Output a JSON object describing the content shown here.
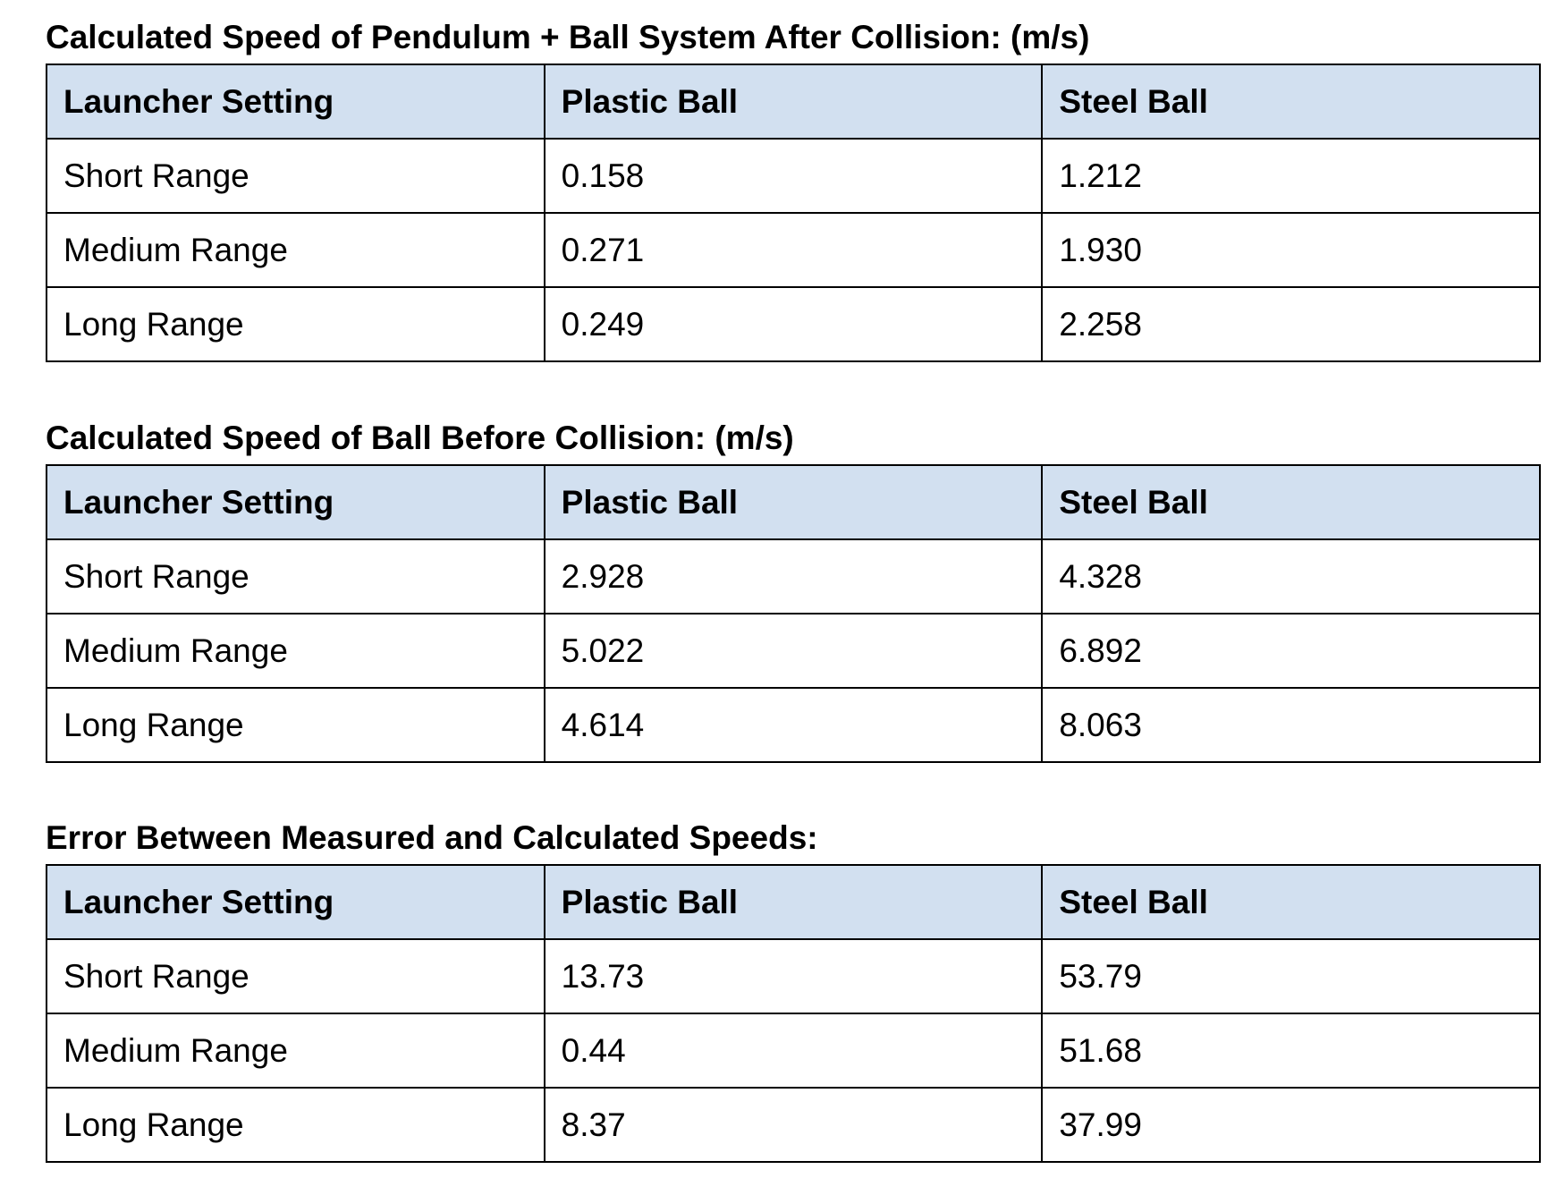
{
  "sections": [
    {
      "title": "Calculated Speed of Pendulum + Ball System After Collision: (m/s)",
      "header": [
        "Launcher Setting",
        "Plastic Ball",
        "Steel Ball"
      ],
      "rows": [
        [
          "Short Range",
          "0.158",
          "1.212"
        ],
        [
          "Medium Range",
          "0.271",
          "1.930"
        ],
        [
          "Long Range",
          "0.249",
          "2.258"
        ]
      ]
    },
    {
      "title": "Calculated Speed of Ball Before Collision: (m/s)",
      "header": [
        "Launcher Setting",
        "Plastic Ball",
        "Steel Ball"
      ],
      "rows": [
        [
          "Short Range",
          "2.928",
          "4.328"
        ],
        [
          "Medium Range",
          "5.022",
          "6.892"
        ],
        [
          "Long Range",
          "4.614",
          "8.063"
        ]
      ]
    },
    {
      "title": "Error Between Measured and Calculated Speeds:",
      "header": [
        "Launcher Setting",
        "Plastic Ball",
        "Steel Ball"
      ],
      "rows": [
        [
          "Short Range",
          "13.73",
          "53.79"
        ],
        [
          "Medium Range",
          "0.44",
          "51.68"
        ],
        [
          "Long Range",
          "8.37",
          "37.99"
        ]
      ]
    }
  ]
}
